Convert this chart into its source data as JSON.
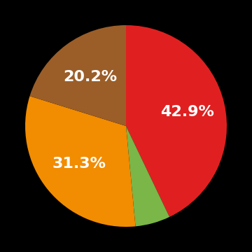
{
  "slices": [
    42.9,
    5.6,
    31.3,
    20.2
  ],
  "colors": [
    "#e02020",
    "#7ab648",
    "#f28c00",
    "#9b5e28"
  ],
  "labels": [
    "42.9%",
    "",
    "31.3%",
    "20.2%"
  ],
  "background_color": "#000000",
  "startangle": 90,
  "label_fontsize": 16,
  "label_color": "white",
  "label_radii": [
    0.62,
    0.0,
    0.6,
    0.6
  ]
}
